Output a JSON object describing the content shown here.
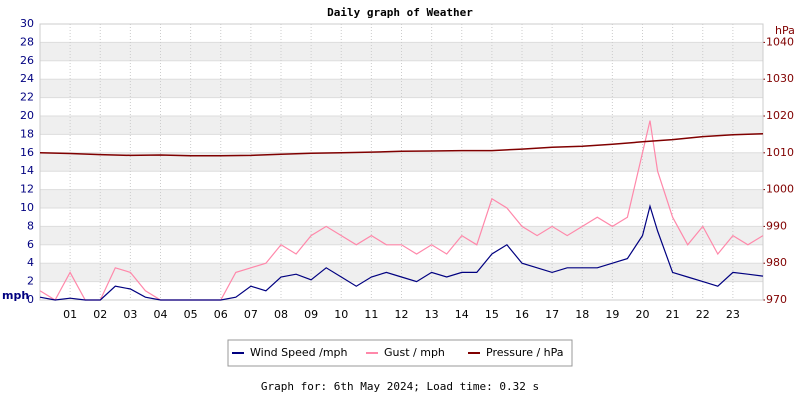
{
  "chart_data": {
    "type": "line",
    "title": "Daily graph of Weather",
    "y_label": "mph",
    "y2_label": "hPa",
    "footer": "Graph for: 6th May 2024; Load time: 0.32 s",
    "xlim": [
      0,
      24
    ],
    "xticks": [
      {
        "value": 1,
        "label": "01"
      },
      {
        "value": 2,
        "label": "02"
      },
      {
        "value": 3,
        "label": "03"
      },
      {
        "value": 4,
        "label": "04"
      },
      {
        "value": 5,
        "label": "05"
      },
      {
        "value": 6,
        "label": "06"
      },
      {
        "value": 7,
        "label": "07"
      },
      {
        "value": 8,
        "label": "08"
      },
      {
        "value": 9,
        "label": "09"
      },
      10,
      11,
      12,
      13,
      14,
      15,
      16,
      17,
      18,
      19,
      20,
      21,
      22,
      23
    ],
    "ylim": [
      0,
      30
    ],
    "yticks": [
      0,
      2,
      4,
      6,
      8,
      10,
      12,
      14,
      16,
      18,
      20,
      22,
      24,
      26,
      28,
      30
    ],
    "y2lim": [
      970,
      1045
    ],
    "y2ticks": [
      970,
      980,
      990,
      1000,
      1010,
      1020,
      1030,
      1040
    ],
    "grid": true,
    "x": [
      0,
      0.5,
      1,
      1.5,
      2,
      2.5,
      3,
      3.5,
      4,
      4.5,
      5,
      5.5,
      6,
      6.5,
      7,
      7.5,
      8,
      8.5,
      9,
      9.5,
      10,
      10.5,
      11,
      11.5,
      12,
      12.5,
      13,
      13.5,
      14,
      14.5,
      15,
      15.5,
      16,
      16.5,
      17,
      17.5,
      18,
      18.5,
      19,
      19.5,
      20,
      20.25,
      20.5,
      21,
      21.5,
      22,
      22.5,
      23,
      23.5,
      24
    ],
    "series": [
      {
        "name": "Wind Speed /mph",
        "color": "#000080",
        "values": [
          0.3,
          0,
          0.2,
          0,
          0,
          1.5,
          1.2,
          0.3,
          0,
          0,
          0,
          0,
          0,
          0.3,
          1.5,
          1.0,
          2.5,
          2.8,
          2.2,
          3.5,
          2.5,
          1.5,
          2.5,
          3.0,
          2.5,
          2.0,
          3.0,
          2.5,
          3.0,
          3.0,
          5.0,
          6.0,
          4.0,
          3.5,
          3.0,
          3.5,
          3.5,
          3.5,
          4.0,
          4.5,
          7.0,
          10.2,
          7.5,
          3.0,
          2.5,
          2.0,
          1.5,
          3.0,
          2.8,
          2.6
        ]
      },
      {
        "name": "Gust / mph",
        "color": "#ff88aa",
        "values": [
          1,
          0,
          3,
          0,
          0,
          3.5,
          3,
          1,
          0,
          0,
          0,
          0,
          0,
          3,
          3.5,
          4,
          6,
          5,
          7,
          8,
          7,
          6,
          7,
          6,
          6,
          5,
          6,
          5,
          7,
          6,
          11,
          10,
          8,
          7,
          8,
          7,
          8,
          9,
          8,
          9,
          16,
          19.5,
          14,
          9,
          6,
          8,
          5,
          7,
          6,
          7
        ]
      },
      {
        "name": "Pressure / hPa",
        "color": "#800000",
        "axis": "y2",
        "x": [
          0,
          1,
          2,
          3,
          4,
          5,
          6,
          7,
          8,
          9,
          10,
          11,
          12,
          13,
          14,
          15,
          16,
          17,
          18,
          19,
          20,
          21,
          22,
          23,
          24
        ],
        "values": [
          1010,
          1009.8,
          1009.5,
          1009.3,
          1009.4,
          1009.2,
          1009.2,
          1009.3,
          1009.6,
          1009.9,
          1010,
          1010.2,
          1010.4,
          1010.5,
          1010.6,
          1010.6,
          1011,
          1011.5,
          1011.8,
          1012.3,
          1013,
          1013.6,
          1014.4,
          1014.9,
          1015.2
        ]
      }
    ]
  }
}
